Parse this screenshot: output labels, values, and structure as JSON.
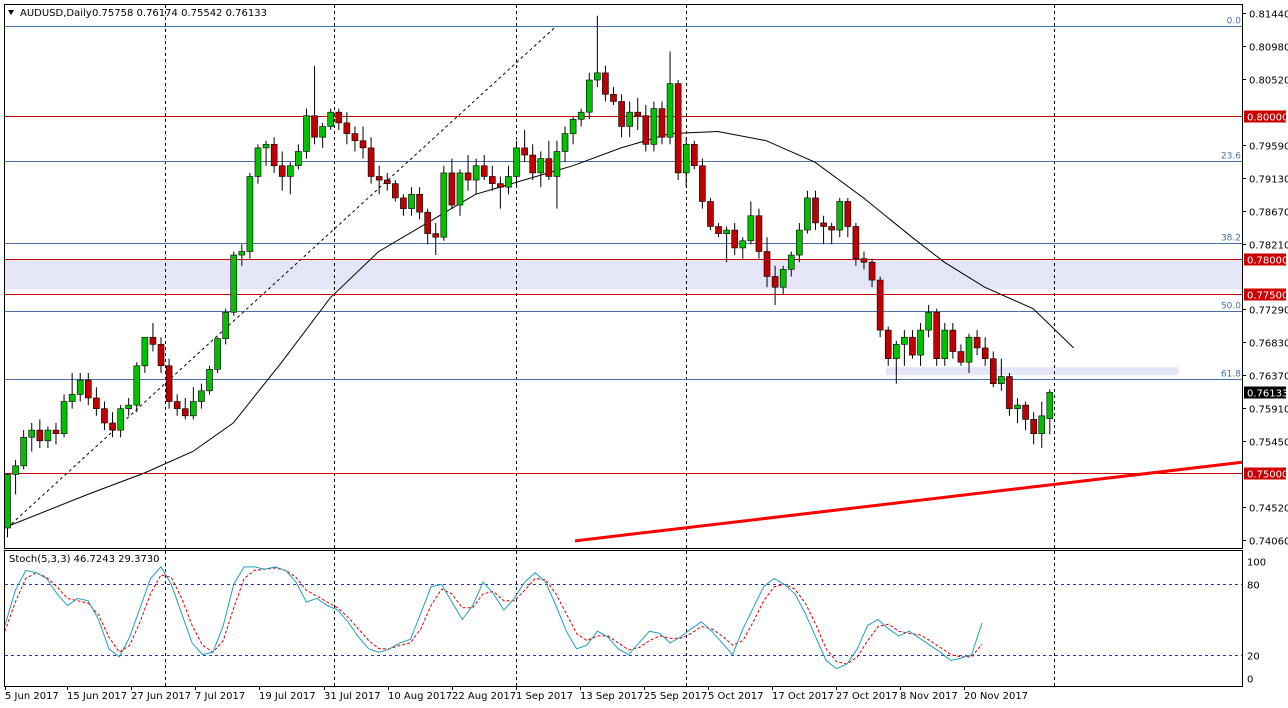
{
  "header": {
    "symbol": "AUDUSD,Daily",
    "ohlc": "0.75758 0.76174 0.75542 0.76133",
    "menu_icon": "triangle-down-icon"
  },
  "colors": {
    "bull": "#00c000",
    "bear": "#c00000",
    "level_line": "#cc0000",
    "fib_line": "#4a6fa5",
    "zone": "#e4e6f7",
    "ma": "#000000",
    "stoch_main": "#20a0c0",
    "stoch_signal": "#e00000",
    "grid": "#000000",
    "current_price_bg": "#000000"
  },
  "chart_data": [
    {
      "type": "candlestick",
      "title": "AUDUSD,Daily",
      "ylim": [
        0.7395,
        0.8155
      ],
      "y_ticks": [
        "0.81440",
        "0.80980",
        "0.80520",
        "0.79590",
        "0.79130",
        "0.78670",
        "0.78210",
        "0.77290",
        "0.76830",
        "0.76370",
        "0.75910",
        "0.75450",
        "0.74520",
        "0.74060"
      ],
      "x_ticks": [
        "5 Jun 2017",
        "15 Jun 2017",
        "27 Jun 2017",
        "7 Jul 2017",
        "19 Jul 2017",
        "31 Jul 2017",
        "10 Aug 2017",
        "22 Aug 2017",
        "1 Sep 2017",
        "13 Sep 2017",
        "25 Sep 2017",
        "5 Oct 2017",
        "17 Oct 2017",
        "27 Oct 2017",
        "8 Nov 2017",
        "20 Nov 2017"
      ],
      "last_price": "0.76133",
      "candles": [
        [
          0.7423,
          0.75,
          0.741,
          0.7498
        ],
        [
          0.7498,
          0.7518,
          0.747,
          0.751
        ],
        [
          0.751,
          0.756,
          0.7505,
          0.755
        ],
        [
          0.755,
          0.757,
          0.753,
          0.756
        ],
        [
          0.756,
          0.7575,
          0.7535,
          0.7545
        ],
        [
          0.7545,
          0.7565,
          0.7535,
          0.756
        ],
        [
          0.756,
          0.757,
          0.754,
          0.7555
        ],
        [
          0.7555,
          0.761,
          0.755,
          0.76
        ],
        [
          0.76,
          0.764,
          0.759,
          0.761
        ],
        [
          0.761,
          0.764,
          0.76,
          0.763
        ],
        [
          0.763,
          0.764,
          0.7595,
          0.7605
        ],
        [
          0.7605,
          0.762,
          0.758,
          0.759
        ],
        [
          0.759,
          0.76,
          0.756,
          0.757
        ],
        [
          0.757,
          0.7585,
          0.755,
          0.756
        ],
        [
          0.756,
          0.7595,
          0.755,
          0.759
        ],
        [
          0.759,
          0.7605,
          0.758,
          0.7595
        ],
        [
          0.7595,
          0.7655,
          0.7585,
          0.765
        ],
        [
          0.765,
          0.769,
          0.764,
          0.769
        ],
        [
          0.769,
          0.771,
          0.767,
          0.768
        ],
        [
          0.768,
          0.769,
          0.764,
          0.765
        ],
        [
          0.765,
          0.766,
          0.759,
          0.76
        ],
        [
          0.76,
          0.761,
          0.758,
          0.759
        ],
        [
          0.759,
          0.7605,
          0.7575,
          0.758
        ],
        [
          0.758,
          0.762,
          0.7575,
          0.76
        ],
        [
          0.76,
          0.7625,
          0.759,
          0.7615
        ],
        [
          0.7615,
          0.765,
          0.761,
          0.7645
        ],
        [
          0.7645,
          0.769,
          0.764,
          0.7688
        ],
        [
          0.7688,
          0.773,
          0.768,
          0.7725
        ],
        [
          0.7725,
          0.781,
          0.772,
          0.7805
        ],
        [
          0.7805,
          0.782,
          0.779,
          0.781
        ],
        [
          0.781,
          0.792,
          0.78,
          0.7915
        ],
        [
          0.7915,
          0.796,
          0.7905,
          0.7955
        ],
        [
          0.7955,
          0.7965,
          0.793,
          0.796
        ],
        [
          0.796,
          0.797,
          0.792,
          0.793
        ],
        [
          0.793,
          0.795,
          0.7895,
          0.7915
        ],
        [
          0.7915,
          0.7935,
          0.789,
          0.793
        ],
        [
          0.793,
          0.796,
          0.7925,
          0.795
        ],
        [
          0.795,
          0.801,
          0.794,
          0.8
        ],
        [
          0.8,
          0.807,
          0.796,
          0.797
        ],
        [
          0.797,
          0.799,
          0.7955,
          0.7985
        ],
        [
          0.7985,
          0.801,
          0.798,
          0.8005
        ],
        [
          0.8005,
          0.801,
          0.798,
          0.799
        ],
        [
          0.799,
          0.8005,
          0.796,
          0.7975
        ],
        [
          0.7975,
          0.7985,
          0.795,
          0.7965
        ],
        [
          0.7965,
          0.7985,
          0.794,
          0.7955
        ],
        [
          0.7955,
          0.797,
          0.7905,
          0.7915
        ],
        [
          0.7915,
          0.793,
          0.789,
          0.791
        ],
        [
          0.791,
          0.792,
          0.7895,
          0.7905
        ],
        [
          0.7905,
          0.791,
          0.788,
          0.7885
        ],
        [
          0.7885,
          0.789,
          0.786,
          0.787
        ],
        [
          0.787,
          0.79,
          0.786,
          0.789
        ],
        [
          0.789,
          0.79,
          0.7855,
          0.7865
        ],
        [
          0.7865,
          0.787,
          0.782,
          0.7835
        ],
        [
          0.7835,
          0.785,
          0.7805,
          0.783
        ],
        [
          0.783,
          0.793,
          0.7825,
          0.792
        ],
        [
          0.792,
          0.794,
          0.787,
          0.7875
        ],
        [
          0.7875,
          0.7925,
          0.786,
          0.792
        ],
        [
          0.792,
          0.7945,
          0.7895,
          0.791
        ],
        [
          0.791,
          0.794,
          0.789,
          0.793
        ],
        [
          0.793,
          0.7945,
          0.791,
          0.7915
        ],
        [
          0.7915,
          0.793,
          0.7895,
          0.7905
        ],
        [
          0.7905,
          0.7915,
          0.787,
          0.79
        ],
        [
          0.79,
          0.793,
          0.789,
          0.7915
        ],
        [
          0.7915,
          0.7965,
          0.79,
          0.7955
        ],
        [
          0.7955,
          0.798,
          0.7935,
          0.7945
        ],
        [
          0.7945,
          0.796,
          0.791,
          0.792
        ],
        [
          0.792,
          0.795,
          0.79,
          0.794
        ],
        [
          0.794,
          0.7965,
          0.791,
          0.7915
        ],
        [
          0.7915,
          0.7965,
          0.787,
          0.795
        ],
        [
          0.795,
          0.7985,
          0.7935,
          0.7975
        ],
        [
          0.7975,
          0.8,
          0.796,
          0.7995
        ],
        [
          0.7995,
          0.801,
          0.7985,
          0.8005
        ],
        [
          0.8005,
          0.806,
          0.7995,
          0.805
        ],
        [
          0.805,
          0.814,
          0.804,
          0.806
        ],
        [
          0.806,
          0.807,
          0.802,
          0.803
        ],
        [
          0.803,
          0.804,
          0.8015,
          0.802
        ],
        [
          0.802,
          0.803,
          0.797,
          0.7985
        ],
        [
          0.7985,
          0.802,
          0.797,
          0.8005
        ],
        [
          0.8005,
          0.8025,
          0.798,
          0.8
        ],
        [
          0.8,
          0.8015,
          0.795,
          0.796
        ],
        [
          0.796,
          0.802,
          0.795,
          0.801
        ],
        [
          0.801,
          0.802,
          0.796,
          0.797
        ],
        [
          0.797,
          0.809,
          0.796,
          0.8045
        ],
        [
          0.8045,
          0.805,
          0.791,
          0.792
        ],
        [
          0.792,
          0.797,
          0.79,
          0.796
        ],
        [
          0.796,
          0.7965,
          0.7925,
          0.793
        ],
        [
          0.793,
          0.794,
          0.787,
          0.788
        ],
        [
          0.788,
          0.7885,
          0.784,
          0.7845
        ],
        [
          0.7845,
          0.785,
          0.783,
          0.7835
        ],
        [
          0.7835,
          0.7845,
          0.7795,
          0.784
        ],
        [
          0.784,
          0.785,
          0.7805,
          0.7815
        ],
        [
          0.7815,
          0.783,
          0.78,
          0.7825
        ],
        [
          0.7825,
          0.788,
          0.782,
          0.786
        ],
        [
          0.786,
          0.787,
          0.78,
          0.781
        ],
        [
          0.781,
          0.783,
          0.776,
          0.7775
        ],
        [
          0.7775,
          0.779,
          0.7735,
          0.776
        ],
        [
          0.776,
          0.779,
          0.775,
          0.7785
        ],
        [
          0.7785,
          0.781,
          0.7775,
          0.7805
        ],
        [
          0.7805,
          0.785,
          0.7795,
          0.784
        ],
        [
          0.784,
          0.7895,
          0.7835,
          0.7885
        ],
        [
          0.7885,
          0.7895,
          0.784,
          0.785
        ],
        [
          0.785,
          0.786,
          0.782,
          0.7845
        ],
        [
          0.7845,
          0.785,
          0.782,
          0.784
        ],
        [
          0.784,
          0.7885,
          0.783,
          0.788
        ],
        [
          0.788,
          0.7885,
          0.783,
          0.7845
        ],
        [
          0.7845,
          0.785,
          0.779,
          0.78
        ],
        [
          0.78,
          0.781,
          0.7785,
          0.7795
        ],
        [
          0.7795,
          0.78,
          0.776,
          0.777
        ],
        [
          0.777,
          0.7775,
          0.769,
          0.77
        ],
        [
          0.77,
          0.7705,
          0.765,
          0.766
        ],
        [
          0.766,
          0.7685,
          0.7625,
          0.768
        ],
        [
          0.768,
          0.77,
          0.765,
          0.769
        ],
        [
          0.769,
          0.77,
          0.766,
          0.7665
        ],
        [
          0.7665,
          0.771,
          0.765,
          0.77
        ],
        [
          0.77,
          0.7735,
          0.769,
          0.7725
        ],
        [
          0.7725,
          0.773,
          0.765,
          0.766
        ],
        [
          0.766,
          0.771,
          0.765,
          0.77
        ],
        [
          0.77,
          0.771,
          0.766,
          0.767
        ],
        [
          0.767,
          0.768,
          0.765,
          0.7655
        ],
        [
          0.7655,
          0.7695,
          0.764,
          0.769
        ],
        [
          0.769,
          0.77,
          0.7665,
          0.7675
        ],
        [
          0.7675,
          0.769,
          0.765,
          0.766
        ],
        [
          0.766,
          0.767,
          0.762,
          0.7625
        ],
        [
          0.7625,
          0.766,
          0.7615,
          0.7635
        ],
        [
          0.7635,
          0.764,
          0.758,
          0.759
        ],
        [
          0.759,
          0.7605,
          0.757,
          0.7595
        ],
        [
          0.7595,
          0.76,
          0.756,
          0.7575
        ],
        [
          0.7575,
          0.7585,
          0.754,
          0.7555
        ],
        [
          0.7555,
          0.76,
          0.7535,
          0.758
        ],
        [
          0.7576,
          0.7617,
          0.7554,
          0.7613
        ]
      ],
      "moving_average_path": [
        [
          0,
          0.7425
        ],
        [
          10,
          0.747
        ],
        [
          17,
          0.75
        ],
        [
          23,
          0.753
        ],
        [
          28,
          0.757
        ],
        [
          34,
          0.7655
        ],
        [
          40,
          0.7745
        ],
        [
          46,
          0.781
        ],
        [
          52,
          0.785
        ],
        [
          58,
          0.789
        ],
        [
          64,
          0.791
        ],
        [
          70,
          0.793
        ],
        [
          76,
          0.7955
        ],
        [
          82,
          0.7975
        ],
        [
          88,
          0.7978
        ],
        [
          94,
          0.7965
        ],
        [
          100,
          0.7935
        ],
        [
          106,
          0.7885
        ],
        [
          112,
          0.783
        ],
        [
          116,
          0.7795
        ],
        [
          121,
          0.776
        ],
        [
          127,
          0.773
        ],
        [
          132,
          0.7675
        ]
      ],
      "horizontal_levels": [
        {
          "price": 0.8,
          "label": "0.80000"
        },
        {
          "price": 0.78,
          "label": "0.78000"
        },
        {
          "price": 0.775,
          "label": "0.77500"
        },
        {
          "price": 0.75,
          "label": "0.75000"
        }
      ],
      "fibonacci_levels": [
        {
          "price": 0.8125,
          "label": "0.0"
        },
        {
          "price": 0.7936,
          "label": "23.6"
        },
        {
          "price": 0.7822,
          "label": "38.2"
        },
        {
          "price": 0.7727,
          "label": "50.0"
        },
        {
          "price": 0.7632,
          "label": "61.8"
        }
      ],
      "zones": [
        {
          "top": 0.7798,
          "bottom": 0.7757,
          "from": 0,
          "to": "end"
        },
        {
          "top": 0.7648,
          "bottom": 0.7637,
          "from": 109,
          "to": 145
        }
      ],
      "fib_anchor_line": {
        "from": [
          0,
          0.7423
        ],
        "to": [
          75,
          0.8125
        ]
      },
      "trendline": {
        "from": [
          78,
          0.7405
        ],
        "to": [
          168,
          0.7515
        ]
      }
    },
    {
      "type": "line",
      "title": "Stoch(5,3,3) 46.7243 29.3730",
      "ylim": [
        0,
        100
      ],
      "y_ticks": [
        "100",
        "80",
        "20",
        "0"
      ],
      "levels": [
        80,
        20
      ],
      "series": [
        {
          "name": "main",
          "values": [
            45,
            75,
            92,
            90,
            85,
            72,
            62,
            68,
            66,
            50,
            25,
            18,
            35,
            60,
            85,
            95,
            80,
            55,
            30,
            20,
            22,
            45,
            80,
            95,
            95,
            93,
            95,
            92,
            82,
            65,
            68,
            62,
            58,
            48,
            35,
            25,
            22,
            25,
            30,
            33,
            55,
            78,
            80,
            65,
            50,
            62,
            82,
            72,
            58,
            68,
            82,
            90,
            82,
            62,
            40,
            25,
            28,
            40,
            35,
            25,
            20,
            30,
            40,
            38,
            30,
            35,
            42,
            48,
            40,
            30,
            20,
            42,
            60,
            78,
            85,
            80,
            72,
            55,
            35,
            15,
            8,
            12,
            25,
            45,
            50,
            42,
            36,
            40,
            34,
            28,
            22,
            15,
            17,
            20,
            47
          ]
        },
        {
          "name": "signal",
          "values": [
            40,
            65,
            85,
            90,
            86,
            78,
            68,
            66,
            64,
            54,
            35,
            22,
            28,
            48,
            72,
            88,
            86,
            68,
            45,
            28,
            22,
            32,
            60,
            85,
            92,
            93,
            94,
            92,
            86,
            75,
            70,
            65,
            60,
            52,
            42,
            32,
            25,
            25,
            28,
            30,
            42,
            62,
            76,
            72,
            60,
            60,
            72,
            74,
            66,
            66,
            75,
            85,
            84,
            72,
            55,
            38,
            32,
            36,
            36,
            30,
            24,
            26,
            32,
            36,
            34,
            34,
            38,
            44,
            42,
            36,
            28,
            32,
            48,
            66,
            78,
            80,
            76,
            64,
            46,
            25,
            14,
            12,
            18,
            32,
            44,
            46,
            40,
            38,
            37,
            32,
            26,
            20,
            18,
            18,
            29
          ]
        }
      ]
    }
  ]
}
